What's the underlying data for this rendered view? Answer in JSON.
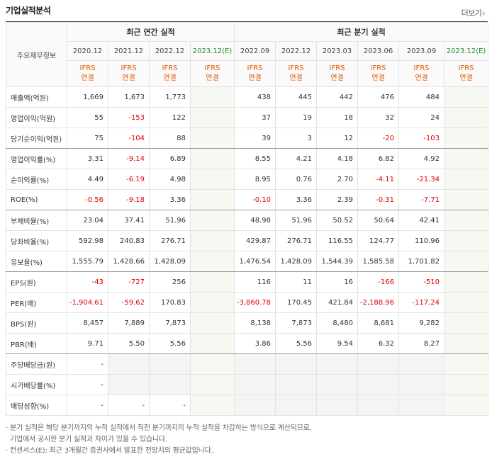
{
  "title": "기업실적분석",
  "more": {
    "label": "더보기",
    "icon": "chevron-right-icon"
  },
  "header": {
    "row_label": "주요재무정보",
    "annual_group": "최근 연간 실적",
    "quarter_group": "최근 분기 실적",
    "annual_periods": [
      "2020.12",
      "2021.12",
      "2022.12",
      "2023.12"
    ],
    "quarter_periods": [
      "2022.09",
      "2022.12",
      "2023.03",
      "2023.06",
      "2023.09",
      "2023.12"
    ],
    "estimate_suffix": "(E)",
    "ifrs_line1": "IFRS",
    "ifrs_line2": "연결"
  },
  "rows": [
    {
      "label": "매출액(억원)",
      "annual": [
        "1,669",
        "1,673",
        "1,773",
        ""
      ],
      "quarter": [
        "438",
        "445",
        "442",
        "476",
        "484",
        ""
      ]
    },
    {
      "label": "영업이익(억원)",
      "annual": [
        "55",
        "-153",
        "122",
        ""
      ],
      "quarter": [
        "37",
        "19",
        "18",
        "32",
        "24",
        ""
      ]
    },
    {
      "label": "당기순이익(억원)",
      "annual": [
        "75",
        "-104",
        "88",
        ""
      ],
      "quarter": [
        "39",
        "3",
        "12",
        "-20",
        "-103",
        ""
      ]
    },
    {
      "label": "영업이익률(%)",
      "annual": [
        "3.31",
        "-9.14",
        "6.89",
        ""
      ],
      "quarter": [
        "8.55",
        "4.21",
        "4.18",
        "6.82",
        "4.92",
        ""
      ]
    },
    {
      "label": "순이익률(%)",
      "annual": [
        "4.49",
        "-6.19",
        "4.98",
        ""
      ],
      "quarter": [
        "8.95",
        "0.76",
        "2.70",
        "-4.11",
        "-21.34",
        ""
      ]
    },
    {
      "label": "ROE(%)",
      "annual": [
        "-0.56",
        "-9.18",
        "3.36",
        ""
      ],
      "quarter": [
        "-0.10",
        "3.36",
        "2.39",
        "-0.31",
        "-7.71",
        ""
      ]
    },
    {
      "label": "부채비율(%)",
      "annual": [
        "23.04",
        "37.41",
        "51.96",
        ""
      ],
      "quarter": [
        "48.98",
        "51.96",
        "50.52",
        "50.64",
        "42.41",
        ""
      ]
    },
    {
      "label": "당좌비율(%)",
      "annual": [
        "592.98",
        "240.83",
        "276.71",
        ""
      ],
      "quarter": [
        "429.87",
        "276.71",
        "116.55",
        "124.77",
        "110.96",
        ""
      ]
    },
    {
      "label": "유보율(%)",
      "annual": [
        "1,555.79",
        "1,428.66",
        "1,428.09",
        ""
      ],
      "quarter": [
        "1,476.54",
        "1,428.09",
        "1,544.39",
        "1,585.58",
        "1,701.82",
        ""
      ]
    },
    {
      "label": "EPS(원)",
      "annual": [
        "-43",
        "-727",
        "256",
        ""
      ],
      "quarter": [
        "116",
        "11",
        "16",
        "-166",
        "-510",
        ""
      ]
    },
    {
      "label": "PER(배)",
      "annual": [
        "-1,904.61",
        "-59.62",
        "170.83",
        ""
      ],
      "quarter": [
        "-3,860.78",
        "170.45",
        "421.84",
        "-2,188.96",
        "-117.24",
        ""
      ]
    },
    {
      "label": "BPS(원)",
      "annual": [
        "8,457",
        "7,889",
        "7,873",
        ""
      ],
      "quarter": [
        "8,138",
        "7,873",
        "8,480",
        "8,681",
        "9,282",
        ""
      ]
    },
    {
      "label": "PBR(배)",
      "annual": [
        "9.71",
        "5.50",
        "5.56",
        ""
      ],
      "quarter": [
        "3.86",
        "5.56",
        "9.54",
        "6.32",
        "8.27",
        ""
      ]
    },
    {
      "label": "주당배당금(원)",
      "annual": [
        "-",
        "",
        "",
        ""
      ],
      "quarter": [
        "",
        "",
        "",
        "",
        "",
        ""
      ]
    },
    {
      "label": "시가배당률(%)",
      "annual": [
        "-",
        "",
        "",
        ""
      ],
      "quarter": [
        "",
        "",
        "",
        "",
        "",
        ""
      ]
    },
    {
      "label": "배당성향(%)",
      "annual": [
        "-",
        "-",
        "-",
        ""
      ],
      "quarter": [
        "",
        "",
        "",
        "",
        "",
        ""
      ]
    }
  ],
  "notes": [
    "· 분기 실적은 해당 분기까지의 누적 실적에서 직전 분기까지의 누적 실적을 차감하는 방식으로 계산되므로,",
    "  기업에서 공시한 분기 실적과 차이가 있을 수 있습니다.",
    "· 컨센서스(E): 최근 3개월간 증권사에서 발표한 전망치의 평균값입니다."
  ]
}
